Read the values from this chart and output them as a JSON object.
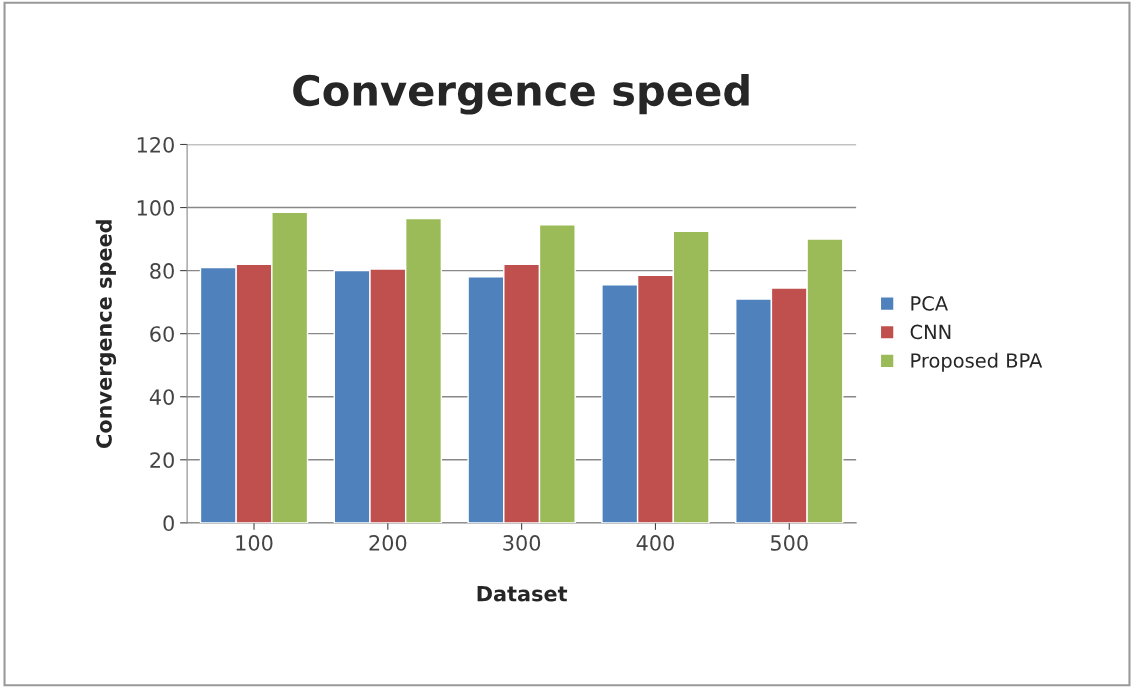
{
  "chart_data": {
    "type": "bar",
    "title": "Convergence speed",
    "xlabel": "Dataset",
    "ylabel": "Convergence speed",
    "categories": [
      "100",
      "200",
      "300",
      "400",
      "500"
    ],
    "series": [
      {
        "name": "PCA",
        "color": "#4f81bd",
        "values": [
          81,
          80,
          78,
          75.5,
          71
        ]
      },
      {
        "name": "CNN",
        "color": "#c0504d",
        "values": [
          82,
          80.5,
          82,
          78.5,
          74.5
        ]
      },
      {
        "name": "Proposed BPA",
        "color": "#9bbb59",
        "values": [
          98.5,
          96.5,
          94.5,
          92.5,
          90
        ]
      }
    ],
    "ylim": [
      0,
      120
    ],
    "yticks": [
      0,
      20,
      40,
      60,
      80,
      100,
      120
    ],
    "grid": "y",
    "legend": "right"
  }
}
